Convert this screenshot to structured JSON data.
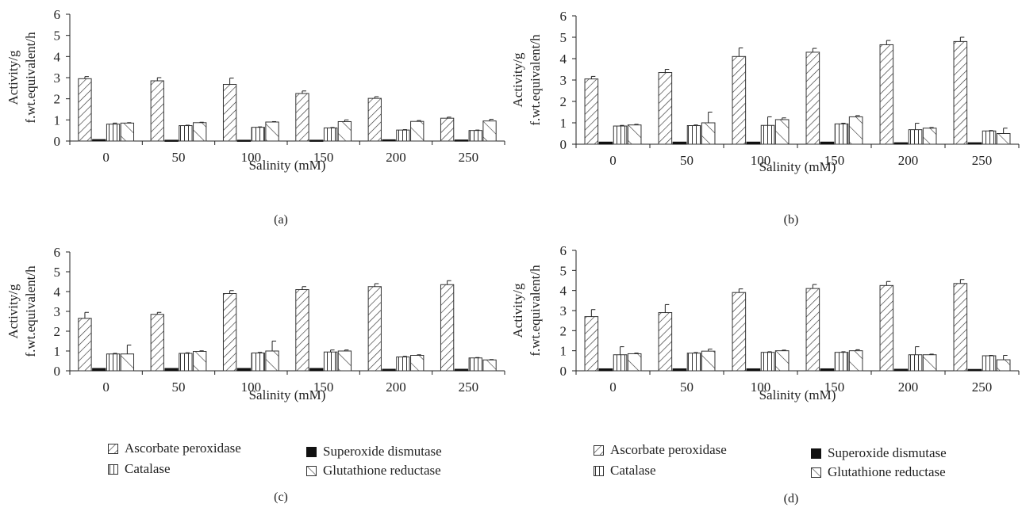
{
  "colors": {
    "axis": "#222222",
    "bar_stroke": "#333333",
    "fill": "#ffffff",
    "solid": "#111111"
  },
  "series_names": [
    "Ascorbate peroxidase",
    "Superoxide dismutase",
    "Catalase",
    "Glutathione reductase"
  ],
  "legend": {
    "ascorbate": "Ascorbate peroxidase",
    "superoxide": "Superoxide dismutase",
    "catalase": "Catalase",
    "glutathione": "Glutathione reductase"
  },
  "chart_data": [
    {
      "type": "bar",
      "panel_label": "(a)",
      "ylabel_line1": "Activity/g",
      "ylabel_line2": "f.wt.equivalent/h",
      "xlabel": "Salinity (mM)",
      "ylim": [
        0,
        6
      ],
      "yticks": [
        0,
        1,
        2,
        3,
        4,
        5,
        6
      ],
      "categories": [
        "0",
        "50",
        "100",
        "150",
        "200",
        "250"
      ],
      "series": [
        {
          "name": "Ascorbate peroxidase",
          "values": [
            2.95,
            2.85,
            2.68,
            2.25,
            2.02,
            1.08
          ],
          "errors": [
            0.1,
            0.15,
            0.3,
            0.12,
            0.08,
            0.05
          ]
        },
        {
          "name": "Superoxide dismutase",
          "values": [
            0.07,
            0.04,
            0.04,
            0.04,
            0.06,
            0.05
          ],
          "errors": [
            0,
            0,
            0,
            0,
            0,
            0
          ]
        },
        {
          "name": "Catalase",
          "values": [
            0.8,
            0.73,
            0.65,
            0.62,
            0.52,
            0.5
          ],
          "errors": [
            0.05,
            0.02,
            0.02,
            0.02,
            0.02,
            0.02
          ]
        },
        {
          "name": "Glutathione reductase",
          "values": [
            0.85,
            0.87,
            0.9,
            0.92,
            0.93,
            0.95
          ],
          "errors": [
            0.02,
            0.02,
            0.02,
            0.08,
            0.04,
            0.08
          ]
        }
      ]
    },
    {
      "type": "bar",
      "panel_label": "(b)",
      "ylabel_line1": "Activity/g",
      "ylabel_line2": "f.wt.equivalent/h",
      "xlabel": "Salinity (mM)",
      "ylim": [
        0,
        6
      ],
      "yticks": [
        0,
        1,
        2,
        3,
        4,
        5,
        6
      ],
      "categories": [
        "0",
        "50",
        "100",
        "150",
        "200",
        "250"
      ],
      "series": [
        {
          "name": "Ascorbate peroxidase",
          "values": [
            3.05,
            3.35,
            4.1,
            4.3,
            4.65,
            4.8
          ],
          "errors": [
            0.12,
            0.15,
            0.4,
            0.18,
            0.2,
            0.2
          ]
        },
        {
          "name": "Superoxide dismutase",
          "values": [
            0.1,
            0.1,
            0.1,
            0.1,
            0.07,
            0.07
          ],
          "errors": [
            0,
            0,
            0,
            0,
            0,
            0
          ]
        },
        {
          "name": "Catalase",
          "values": [
            0.85,
            0.87,
            0.88,
            0.95,
            0.68,
            0.62
          ],
          "errors": [
            0.03,
            0.03,
            0.4,
            0.03,
            0.3,
            0.02
          ]
        },
        {
          "name": "Glutathione reductase",
          "values": [
            0.9,
            1.0,
            1.15,
            1.28,
            0.75,
            0.5
          ],
          "errors": [
            0.03,
            0.5,
            0.08,
            0.06,
            0.03,
            0.25
          ]
        }
      ]
    },
    {
      "type": "bar",
      "panel_label": "(c)",
      "ylabel_line1": "Activity/g",
      "ylabel_line2": "f.wt.equivalent/h",
      "xlabel": "Salinity (mM)",
      "ylim": [
        0,
        6
      ],
      "yticks": [
        0,
        1,
        2,
        3,
        4,
        5,
        6
      ],
      "categories": [
        "0",
        "50",
        "100",
        "150",
        "200",
        "250"
      ],
      "series": [
        {
          "name": "Ascorbate peroxidase",
          "values": [
            2.65,
            2.85,
            3.9,
            4.1,
            4.25,
            4.35
          ],
          "errors": [
            0.3,
            0.1,
            0.15,
            0.15,
            0.15,
            0.2
          ]
        },
        {
          "name": "Superoxide dismutase",
          "values": [
            0.12,
            0.12,
            0.12,
            0.12,
            0.08,
            0.08
          ],
          "errors": [
            0,
            0,
            0,
            0,
            0,
            0
          ]
        },
        {
          "name": "Catalase",
          "values": [
            0.85,
            0.88,
            0.9,
            0.95,
            0.7,
            0.65
          ],
          "errors": [
            0.03,
            0.03,
            0.03,
            0.1,
            0.03,
            0.02
          ]
        },
        {
          "name": "Glutathione reductase",
          "values": [
            0.85,
            0.98,
            1.0,
            1.0,
            0.78,
            0.55
          ],
          "errors": [
            0.45,
            0.03,
            0.5,
            0.05,
            0.03,
            0.02
          ]
        }
      ]
    },
    {
      "type": "bar",
      "panel_label": "(d)",
      "ylabel_line1": "Activity/g",
      "ylabel_line2": "f.wt.equivalent/h",
      "xlabel": "Salinity (mM)",
      "ylim": [
        0,
        6
      ],
      "yticks": [
        0,
        1,
        2,
        3,
        4,
        5,
        6
      ],
      "categories": [
        "0",
        "50",
        "100",
        "150",
        "200",
        "250"
      ],
      "series": [
        {
          "name": "Ascorbate peroxidase",
          "values": [
            2.7,
            2.9,
            3.9,
            4.1,
            4.25,
            4.35
          ],
          "errors": [
            0.35,
            0.4,
            0.18,
            0.2,
            0.2,
            0.2
          ]
        },
        {
          "name": "Superoxide dismutase",
          "values": [
            0.1,
            0.1,
            0.1,
            0.1,
            0.08,
            0.07
          ],
          "errors": [
            0,
            0,
            0,
            0,
            0,
            0
          ]
        },
        {
          "name": "Catalase",
          "values": [
            0.8,
            0.88,
            0.92,
            0.92,
            0.8,
            0.75
          ],
          "errors": [
            0.4,
            0.03,
            0.03,
            0.03,
            0.4,
            0.02
          ]
        },
        {
          "name": "Glutathione reductase",
          "values": [
            0.85,
            0.98,
            1.0,
            1.0,
            0.8,
            0.55
          ],
          "errors": [
            0.03,
            0.1,
            0.03,
            0.05,
            0.03,
            0.22
          ]
        }
      ]
    }
  ]
}
